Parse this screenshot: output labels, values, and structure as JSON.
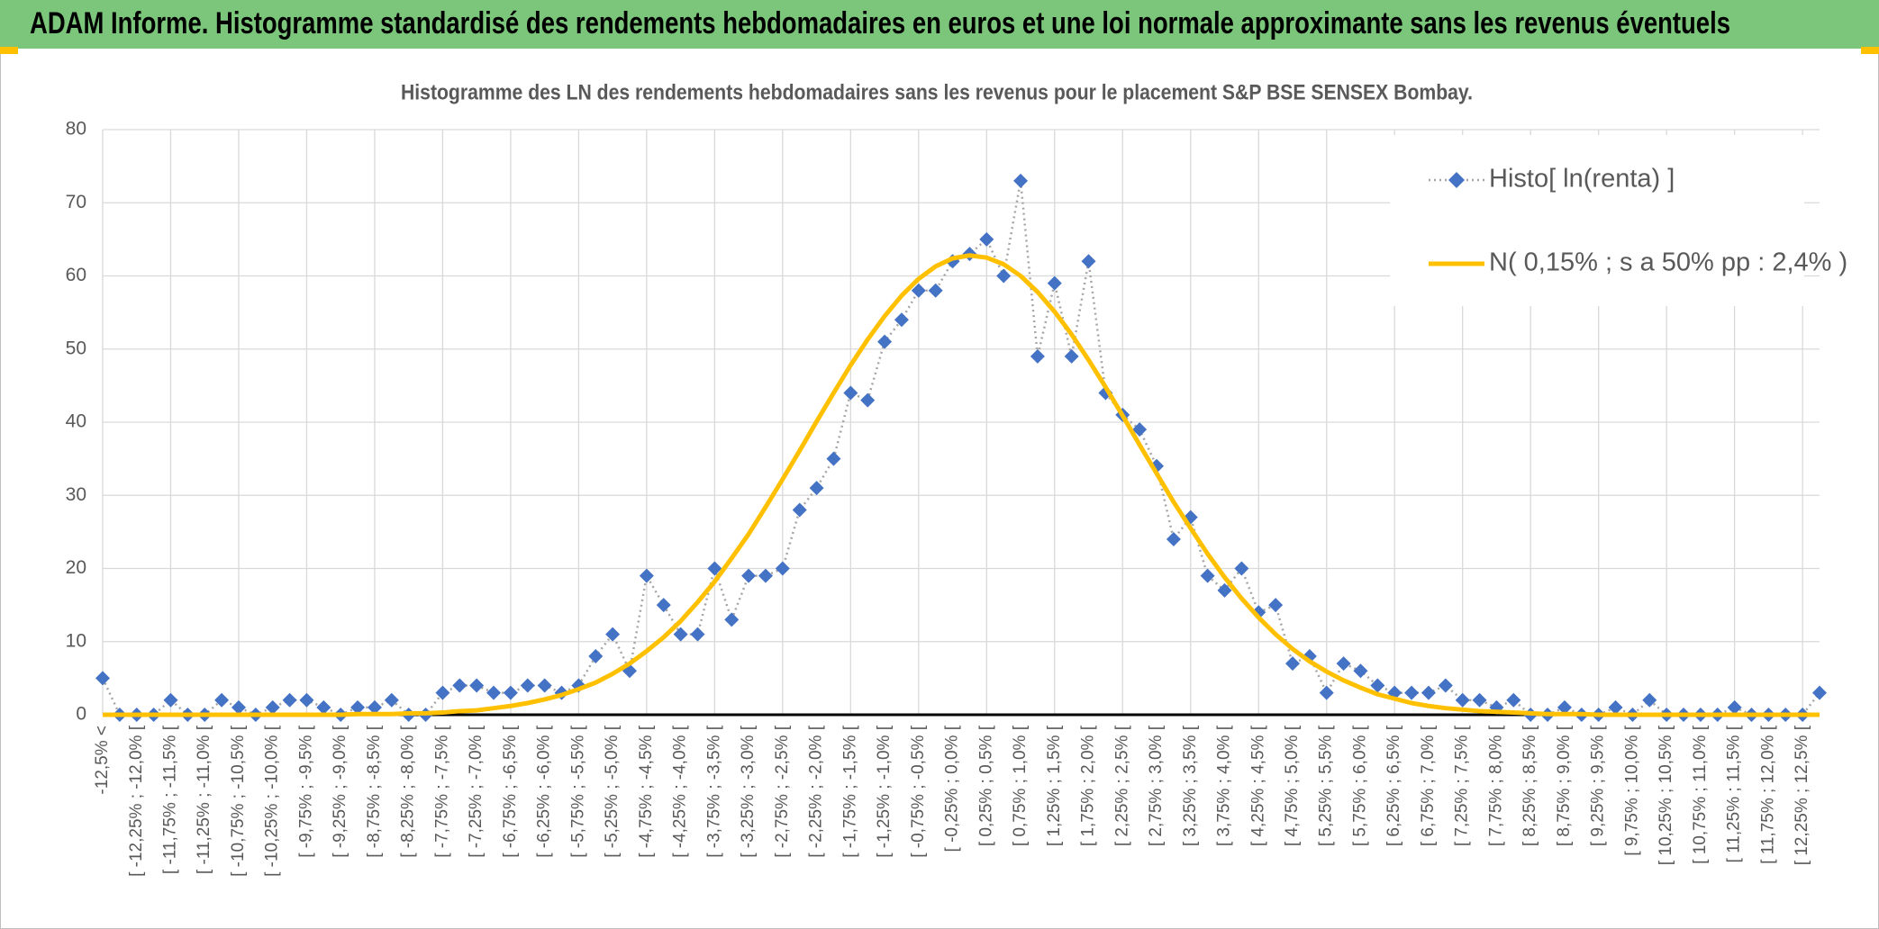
{
  "header": {
    "title": "ADAM Informe. Histogramme standardisé des rendements hebdomadaires en euros et une loi normale approximante sans les revenus éventuels"
  },
  "chart_data": {
    "type": "line",
    "title": "Histogramme des LN des rendements hebdomadaires sans les revenus pour le placement S&P BSE SENSEX Bombay.",
    "categories": [
      "-12,5% <",
      null,
      "[ -12,25% ; -12,0% [",
      null,
      "[ -11,75% ; -11,5% [",
      null,
      "[ -11,25% ; -11,0% [",
      null,
      "[ -10,75% ; -10,5% [",
      null,
      "[ -10,25% ; -10,0% [",
      null,
      "[ -9,75% ; -9,5% [",
      null,
      "[ -9,25% ; -9,0% [",
      null,
      "[ -8,75% ; -8,5% [",
      null,
      "[ -8,25% ; -8,0% [",
      null,
      "[ -7,75% ; -7,5% [",
      null,
      "[ -7,25% ; -7,0% [",
      null,
      "[ -6,75% ; -6,5% [",
      null,
      "[ -6,25% ; -6,0% [",
      null,
      "[ -5,75% ; -5,5% [",
      null,
      "[ -5,25% ; -5,0% [",
      null,
      "[ -4,75% ; -4,5% [",
      null,
      "[ -4,25% ; -4,0% [",
      null,
      "[ -3,75% ; -3,5% [",
      null,
      "[ -3,25% ; -3,0% [",
      null,
      "[ -2,75% ; -2,5% [",
      null,
      "[ -2,25% ; -2,0% [",
      null,
      "[ -1,75% ; -1,5% [",
      null,
      "[ -1,25% ; -1,0% [",
      null,
      "[ -0,75% ; -0,5% [",
      null,
      "[ -0,25% ; 0,0% [",
      null,
      "[ 0,25% ; 0,5% [",
      null,
      "[ 0,75% ; 1,0% [",
      null,
      "[ 1,25% ; 1,5% [",
      null,
      "[ 1,75% ; 2,0% [",
      null,
      "[ 2,25% ; 2,5% [",
      null,
      "[ 2,75% ; 3,0% [",
      null,
      "[ 3,25% ; 3,5% [",
      null,
      "[ 3,75% ; 4,0% [",
      null,
      "[ 4,25% ; 4,5% [",
      null,
      "[ 4,75% ; 5,0% [",
      null,
      "[ 5,25% ; 5,5% [",
      null,
      "[ 5,75% ; 6,0% [",
      null,
      "[ 6,25% ; 6,5% [",
      null,
      "[ 6,75% ; 7,0% [",
      null,
      "[ 7,25% ; 7,5% [",
      null,
      "[ 7,75% ; 8,0% [",
      null,
      "[ 8,25% ; 8,5% [",
      null,
      "[ 8,75% ; 9,0% [",
      null,
      "[ 9,25% ; 9,5% [",
      null,
      "[ 9,75% ; 10,0% [",
      null,
      "[ 10,25% ; 10,5% [",
      null,
      "[ 10,75% ; 11,0% [",
      null,
      "[ 11,25% ; 11,5% [",
      null,
      "[ 11,75% ; 12,0% [",
      null,
      "[ 12,25% ; 12,5% [",
      null
    ],
    "series": [
      {
        "name": "Histo[ ln(renta) ]",
        "color": "#4472c4",
        "line_color": "#a5a5a5",
        "line_style": "dotted",
        "marker": "diamond",
        "values": [
          5,
          0,
          0,
          0,
          2,
          0,
          0,
          2,
          1,
          0,
          1,
          2,
          2,
          1,
          0,
          1,
          1,
          2,
          0,
          0,
          3,
          4,
          4,
          3,
          3,
          4,
          4,
          3,
          4,
          8,
          11,
          6,
          19,
          15,
          11,
          11,
          20,
          13,
          19,
          19,
          20,
          28,
          31,
          35,
          44,
          43,
          51,
          54,
          58,
          58,
          62,
          63,
          65,
          60,
          73,
          49,
          59,
          49,
          62,
          44,
          41,
          39,
          34,
          24,
          27,
          19,
          17,
          20,
          14,
          15,
          7,
          8,
          3,
          7,
          6,
          4,
          3,
          3,
          3,
          4,
          2,
          2,
          1,
          2,
          0,
          0,
          1,
          0,
          0,
          1,
          0,
          2,
          0,
          0,
          0,
          0,
          1,
          0,
          0,
          0,
          0,
          3
        ]
      },
      {
        "name": "N( 0,15% ; s a 50% pp : 2,4% )",
        "color": "#ffc000",
        "line_style": "solid",
        "marker": "none",
        "values": [
          0,
          0,
          0,
          0,
          0,
          0,
          0,
          0,
          0,
          0,
          0,
          0,
          0,
          0,
          0,
          0.1,
          0.1,
          0.1,
          0.2,
          0.2,
          0.3,
          0.5,
          0.6,
          0.9,
          1.2,
          1.6,
          2.1,
          2.7,
          3.5,
          4.4,
          5.6,
          7.0,
          8.7,
          10.6,
          12.8,
          15.4,
          18.2,
          21.4,
          24.7,
          28.4,
          32.2,
          36.1,
          40.1,
          44.0,
          47.8,
          51.3,
          54.5,
          57.3,
          59.6,
          61.3,
          62.4,
          62.8,
          62.5,
          61.6,
          60.0,
          57.8,
          55.1,
          52.0,
          48.5,
          44.8,
          40.9,
          36.9,
          33.0,
          29.1,
          25.5,
          22.0,
          18.8,
          15.9,
          13.3,
          11.0,
          9.0,
          7.3,
          5.9,
          4.7,
          3.7,
          2.8,
          2.2,
          1.6,
          1.2,
          0.9,
          0.7,
          0.5,
          0.4,
          0.3,
          0.2,
          0.1,
          0.1,
          0.1,
          0,
          0,
          0,
          0,
          0,
          0,
          0,
          0,
          0,
          0,
          0,
          0,
          0,
          0
        ]
      }
    ],
    "ylim": [
      0,
      80
    ],
    "yticks": [
      0,
      10,
      20,
      30,
      40,
      50,
      60,
      70,
      80
    ],
    "grid": true,
    "legend": "top right"
  }
}
